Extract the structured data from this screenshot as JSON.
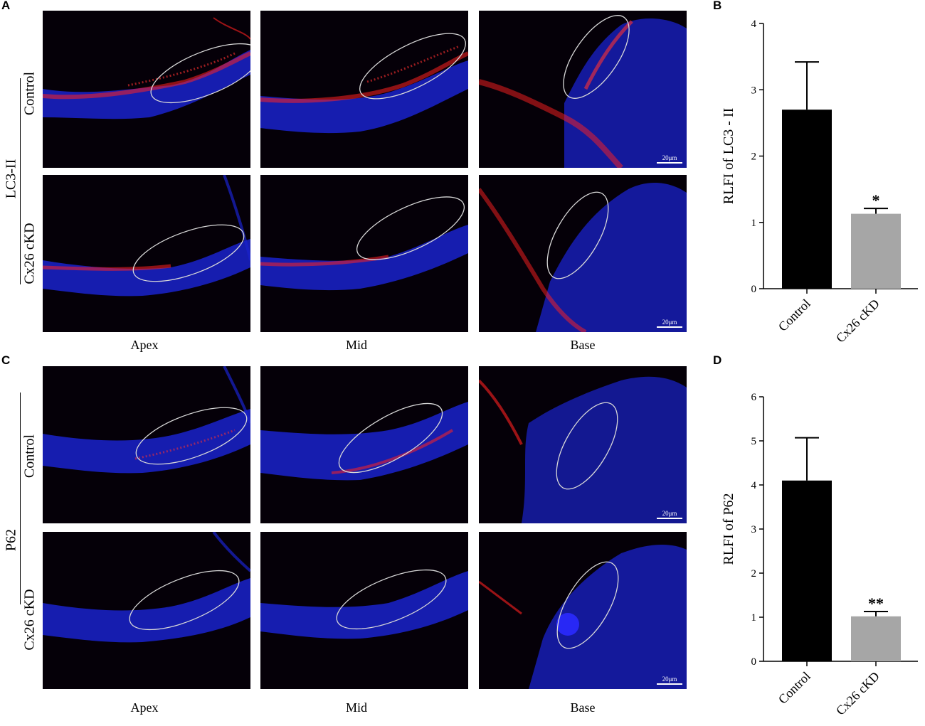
{
  "panels": {
    "A": "A",
    "B": "B",
    "C": "C",
    "D": "D"
  },
  "top": {
    "marker": "LC3-II",
    "rows": [
      "Control",
      "Cx26 cKD"
    ],
    "columns": [
      "Apex",
      "Mid",
      "Base"
    ],
    "scale": "20μm"
  },
  "bottom": {
    "marker": "P62",
    "rows": [
      "Control",
      "Cx26 cKD"
    ],
    "columns": [
      "Apex",
      "Mid",
      "Base"
    ],
    "scale": "20μm"
  },
  "colors": {
    "control_bar": "#000000",
    "ckd_bar": "#a6a6a6",
    "nuclei": "#1a1aff",
    "signal": "#ff1a1a",
    "ellipse": "#d8d8d8"
  },
  "chart_data": [
    {
      "type": "bar",
      "categories": [
        "Control",
        "Cx26 cKD"
      ],
      "values": [
        2.7,
        1.13
      ],
      "errors": [
        0.72,
        0.08
      ],
      "significance": [
        "",
        "*"
      ],
      "ylabel": "RLFI of  LC3 - II",
      "ylim": [
        0,
        4
      ],
      "yticks": [
        "0",
        "1",
        "2",
        "3",
        "4"
      ]
    },
    {
      "type": "bar",
      "categories": [
        "Control",
        "Cx26 cKD"
      ],
      "values": [
        4.1,
        1.02
      ],
      "errors": [
        0.97,
        0.11
      ],
      "significance": [
        "",
        "**"
      ],
      "ylabel": "RLFI of  P62",
      "ylim": [
        0,
        6
      ],
      "yticks": [
        "0",
        "1",
        "2",
        "3",
        "4",
        "5",
        "6"
      ]
    }
  ]
}
